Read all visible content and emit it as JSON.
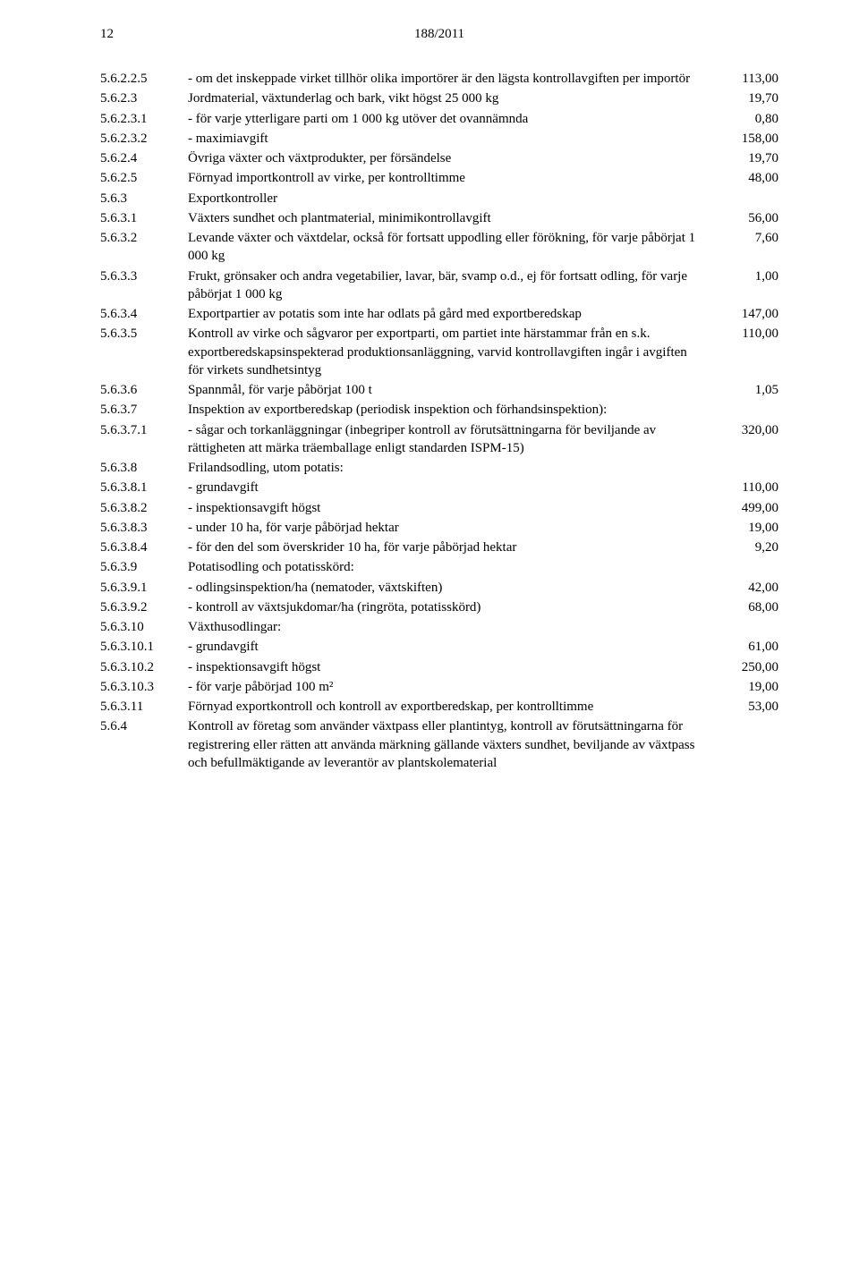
{
  "meta": {
    "page_number": "12",
    "document_number": "188/2011"
  },
  "rows": [
    {
      "code": "5.6.2.2.5",
      "text": "- om det inskeppade virket tillhör olika importörer är den lägsta kontrollavgiften per importör",
      "value": "113,00"
    },
    {
      "code": "5.6.2.3",
      "text": "Jordmaterial, växtunderlag och bark, vikt högst 25 000 kg",
      "value": "19,70"
    },
    {
      "code": "5.6.2.3.1",
      "text": "- för varje ytterligare parti om 1 000 kg utöver det ovannämnda",
      "value": "0,80"
    },
    {
      "code": "5.6.2.3.2",
      "text": "- maximiavgift",
      "value": "158,00"
    },
    {
      "code": "5.6.2.4",
      "text": "Övriga växter och växtprodukter, per försändelse",
      "value": "19,70"
    },
    {
      "code": "5.6.2.5",
      "text": "Förnyad importkontroll av virke, per kontrolltimme",
      "value": "48,00"
    },
    {
      "code": "5.6.3",
      "text": "Exportkontroller",
      "value": ""
    },
    {
      "code": "5.6.3.1",
      "text": "Växters sundhet och plantmaterial, minimikontrollavgift",
      "value": "56,00"
    },
    {
      "code": "5.6.3.2",
      "text": "Levande växter och växtdelar, också för fortsatt uppodling eller förökning, för varje påbörjat 1 000 kg",
      "value": "7,60"
    },
    {
      "code": "5.6.3.3",
      "text": "Frukt, grönsaker och andra vegetabilier, lavar, bär, svamp o.d., ej för fortsatt odling, för varje påbörjat 1 000 kg",
      "value": "1,00"
    },
    {
      "code": "5.6.3.4",
      "text": "Exportpartier av potatis som inte har odlats på gård med exportberedskap",
      "value": "147,00"
    },
    {
      "code": "5.6.3.5",
      "text": "Kontroll av virke och sågvaror per exportparti, om partiet inte härstammar från en s.k. exportberedskapsinspekterad produktionsanläggning, varvid kontrollavgiften ingår i avgiften för virkets sundhetsintyg",
      "value": "110,00"
    },
    {
      "code": "5.6.3.6",
      "text": "Spannmål, för varje påbörjat 100 t",
      "value": "1,05"
    },
    {
      "code": "5.6.3.7",
      "text": "Inspektion av exportberedskap (periodisk inspektion och förhandsinspektion):",
      "value": ""
    },
    {
      "code": "5.6.3.7.1",
      "text": "- sågar och torkanläggningar (inbegriper kontroll av förutsättningarna för beviljande av rättigheten att märka träemballage enligt standarden ISPM-15)",
      "value": "320,00"
    },
    {
      "code": "5.6.3.8",
      "text": "Frilandsodling, utom potatis:",
      "value": ""
    },
    {
      "code": "5.6.3.8.1",
      "text": "- grundavgift",
      "value": "110,00"
    },
    {
      "code": "5.6.3.8.2",
      "text": "- inspektionsavgift högst",
      "value": "499,00"
    },
    {
      "code": "5.6.3.8.3",
      "text": "- under 10 ha, för varje påbörjad hektar",
      "value": "19,00"
    },
    {
      "code": "5.6.3.8.4",
      "text": "- för den del som överskrider 10 ha, för varje påbörjad hektar",
      "value": "9,20"
    },
    {
      "code": "5.6.3.9",
      "text": "Potatisodling och potatisskörd:",
      "value": ""
    },
    {
      "code": "5.6.3.9.1",
      "text": "- odlingsinspektion/ha (nematoder, växtskiften)",
      "value": "42,00"
    },
    {
      "code": "5.6.3.9.2",
      "text": "- kontroll av växtsjukdomar/ha (ringröta, potatisskörd)",
      "value": "68,00"
    },
    {
      "code": "5.6.3.10",
      "text": "Växthusodlingar:",
      "value": ""
    },
    {
      "code": "5.6.3.10.1",
      "text": "- grundavgift",
      "value": "61,00"
    },
    {
      "code": "5.6.3.10.2",
      "text": "- inspektionsavgift högst",
      "value": "250,00"
    },
    {
      "code": "5.6.3.10.3",
      "text": "- för varje påbörjad 100 m²",
      "value": "19,00"
    },
    {
      "code": "5.6.3.11",
      "text": "Förnyad exportkontroll och kontroll av exportberedskap, per kontrolltimme",
      "value": "53,00"
    },
    {
      "code": "5.6.4",
      "text": "Kontroll av företag som använder växtpass eller plantintyg, kontroll av förutsättningarna för registrering eller rätten att använda märkning gällande växters sundhet, beviljande av växtpass och befullmäktigande av leverantör av plantskolematerial",
      "value": ""
    }
  ]
}
